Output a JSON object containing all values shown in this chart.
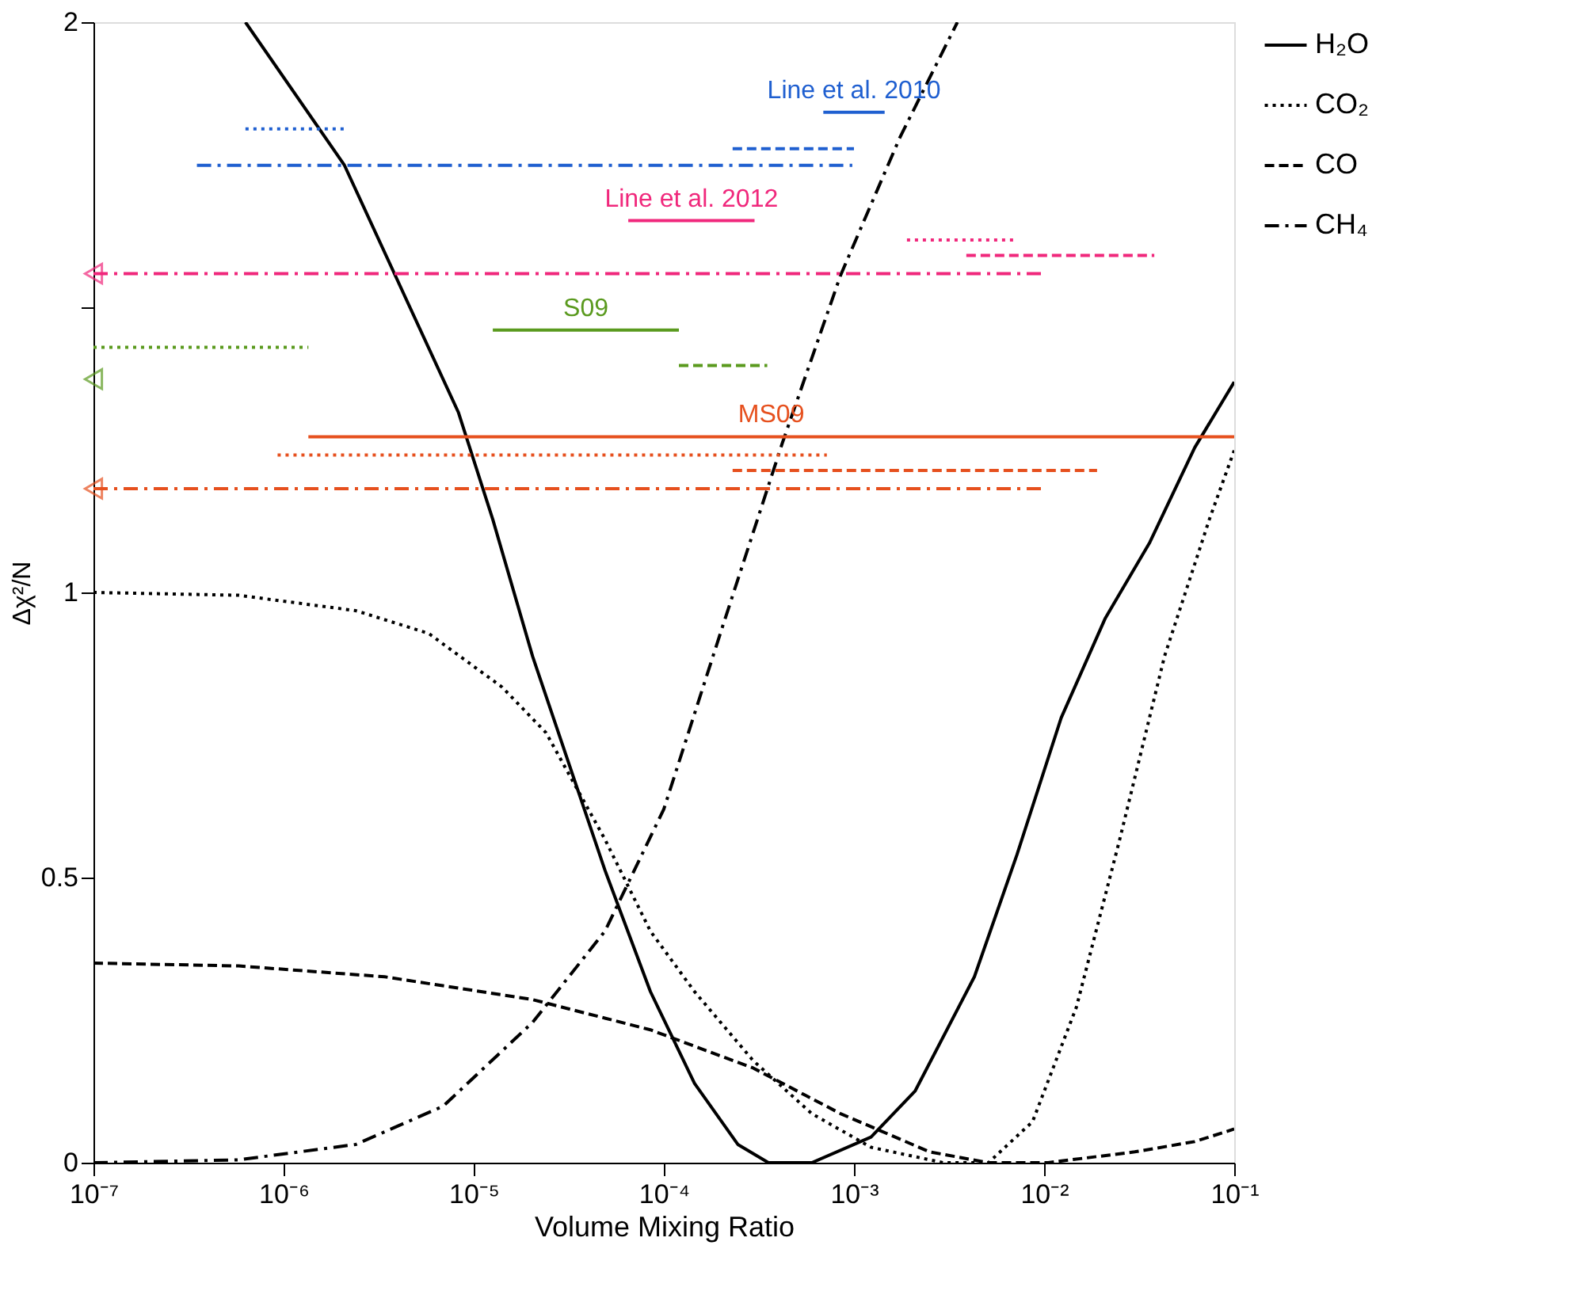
{
  "chart_data": {
    "type": "line",
    "xlabel": "Volume Mixing Ratio",
    "ylabel": "Δχ²/N",
    "log": "x",
    "grid": false,
    "legend": "top right",
    "xlim": [
      1e-07,
      0.1
    ],
    "ylim": [
      0,
      2
    ],
    "xticks": [
      {
        "value": 1e-07,
        "label": "10⁻⁷"
      },
      {
        "value": 1e-06,
        "label": "10⁻⁶"
      },
      {
        "value": 1e-05,
        "label": "10⁻⁵"
      },
      {
        "value": 0.0001,
        "label": "10⁻⁴"
      },
      {
        "value": 0.001,
        "label": "10⁻³"
      },
      {
        "value": 0.01,
        "label": "10⁻²"
      },
      {
        "value": 0.1,
        "label": "10⁻¹"
      }
    ],
    "yticks": [
      0,
      0.5,
      1,
      {
        "value": 1.5,
        "label": null
      },
      2
    ],
    "series": [
      {
        "name": "H₂O",
        "color": "#000000",
        "line_style": "solid",
        "x": [
          6.3e-07,
          2.09e-06,
          8.3e-06,
          1.26e-05,
          2.04e-05,
          4.9e-05,
          8.5e-05,
          0.000145,
          0.000245,
          0.000355,
          0.0006,
          0.00123,
          0.0021,
          0.0043,
          0.0072,
          0.0123,
          0.021,
          0.036,
          0.062,
          0.1
        ],
        "values": [
          2.0,
          1.749,
          1.316,
          1.128,
          0.888,
          0.513,
          0.3,
          0.139,
          0.032,
          0,
          0,
          0.045,
          0.126,
          0.326,
          0.54,
          0.78,
          0.955,
          1.088,
          1.254,
          1.369
        ]
      },
      {
        "name": "CO₂",
        "color": "#000000",
        "line_style": "dotted",
        "x": [
          1e-07,
          5.8e-07,
          2.4e-06,
          5.8e-06,
          1.41e-05,
          2.4e-05,
          4.9e-05,
          8.5e-05,
          0.000145,
          0.000295,
          0.0006,
          0.00123,
          0.00295,
          0.0051,
          0.0087,
          0.0148,
          0.025,
          0.043,
          0.074,
          0.1
        ],
        "values": [
          1.0,
          0.995,
          0.968,
          0.928,
          0.834,
          0.754,
          0.567,
          0.406,
          0.3,
          0.179,
          0.086,
          0.027,
          0,
          0,
          0.072,
          0.273,
          0.567,
          0.888,
          1.128,
          1.249
        ]
      },
      {
        "name": "CO",
        "color": "#000000",
        "line_style": "dashed",
        "x": [
          1e-07,
          5.8e-07,
          3.4e-06,
          2.04e-05,
          8.5e-05,
          0.000295,
          0.00085,
          0.0025,
          0.0051,
          0.0105,
          0.03,
          0.062,
          0.1
        ],
        "values": [
          0.35,
          0.345,
          0.326,
          0.286,
          0.233,
          0.166,
          0.086,
          0.019,
          0,
          0,
          0.019,
          0.037,
          0.059
        ]
      },
      {
        "name": "CH₄",
        "color": "#000000",
        "line_style": "dashdot",
        "x": [
          1e-07,
          5.8e-07,
          2.4e-06,
          6.9e-06,
          2.04e-05,
          4.9e-05,
          0.0001,
          0.000204,
          0.00042,
          0.00085,
          0.00174,
          0.0035
        ],
        "values": [
          0,
          0.005,
          0.032,
          0.099,
          0.246,
          0.406,
          0.62,
          0.941,
          1.262,
          1.556,
          1.797,
          2.0
        ]
      },
      {
        "color": "#1f5fd0",
        "line_style": "solid",
        "x": [
          0.00069,
          0.00145
        ],
        "values": [
          1.842,
          1.842
        ]
      },
      {
        "color": "#1f5fd0",
        "line_style": "dashed",
        "x": [
          0.00023,
          0.001
        ],
        "values": [
          1.778,
          1.778
        ]
      },
      {
        "color": "#1f5fd0",
        "line_style": "dotted",
        "x": [
          6.3e-07,
          2.1e-06
        ],
        "values": [
          1.813,
          1.813
        ]
      },
      {
        "color": "#1f5fd0",
        "line_style": "dashdot",
        "x": [
          3.5e-07,
          0.00098
        ],
        "values": [
          1.749,
          1.749
        ]
      },
      {
        "color": "#f0287c",
        "line_style": "solid",
        "x": [
          6.5e-05,
          0.0003
        ],
        "values": [
          1.652,
          1.652
        ]
      },
      {
        "color": "#f0287c",
        "line_style": "dotted",
        "x": [
          0.0019,
          0.0072
        ],
        "values": [
          1.618,
          1.618
        ]
      },
      {
        "color": "#f0287c",
        "line_style": "dashed",
        "x": [
          0.0039,
          0.038
        ],
        "values": [
          1.591,
          1.591
        ]
      },
      {
        "color": "#f0287c",
        "line_style": "dashdot",
        "marker": "triangle",
        "x": [
          1e-07,
          0.01
        ],
        "values": [
          1.559,
          1.559
        ]
      },
      {
        "color": "#5a9a1e",
        "line_style": "solid",
        "x": [
          1.26e-05,
          0.00012
        ],
        "values": [
          1.46,
          1.46
        ]
      },
      {
        "color": "#5a9a1e",
        "line_style": "dashed",
        "x": [
          0.00012,
          0.00035
        ],
        "values": [
          1.398,
          1.398
        ]
      },
      {
        "color": "#5a9a1e",
        "line_style": "dotted",
        "x": [
          1e-07,
          1.35e-06
        ],
        "values": [
          1.43,
          1.43
        ]
      },
      {
        "color": "#5a9a1e",
        "line_style": "none",
        "marker": "triangle",
        "x": [
          1e-07
        ],
        "values": [
          1.374
        ]
      },
      {
        "color": "#e6501e",
        "line_style": "solid",
        "x": [
          1.35e-06,
          0.1
        ],
        "values": [
          1.273,
          1.273
        ]
      },
      {
        "color": "#e6501e",
        "line_style": "dotted",
        "x": [
          9.3e-07,
          0.00072
        ],
        "values": [
          1.241,
          1.241
        ]
      },
      {
        "color": "#e6501e",
        "line_style": "dashed",
        "x": [
          0.00023,
          0.019
        ],
        "values": [
          1.214,
          1.214
        ]
      },
      {
        "color": "#e6501e",
        "line_style": "dashdot",
        "marker": "triangle",
        "x": [
          1e-07,
          0.01
        ],
        "values": [
          1.182,
          1.182
        ]
      }
    ],
    "annotations": [
      "Line et al. 2010",
      "Line et al. 2012",
      "S09",
      "MS09"
    ]
  }
}
